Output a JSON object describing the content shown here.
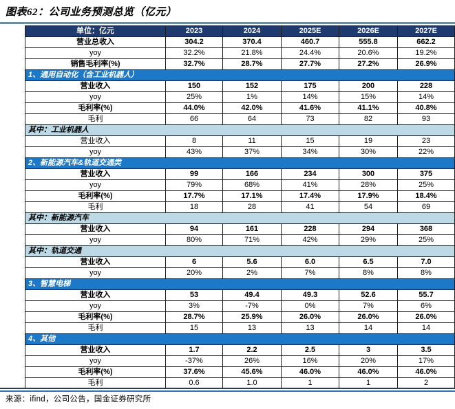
{
  "colors": {
    "header_bg": "#1f3a6e",
    "section_bg": "#1e78c8",
    "subsection_bg": "#bdd9e6",
    "top_rule": "#6d8e9d",
    "bottom_rule_dark": "#2f3c49",
    "bottom_rule_blue": "#2e74b5"
  },
  "title": "图表62：公司业务预测总览（亿元）",
  "source_note": "来源：ifind，公司公告，国金证券研究所",
  "table": {
    "columns": [
      "单位：亿元",
      "2023",
      "2024",
      "2025E",
      "2026E",
      "2027E"
    ],
    "rows": [
      {
        "type": "data",
        "label": "营业总收入",
        "bold": true,
        "label_align": "center",
        "values": [
          "304.2",
          "370.4",
          "460.7",
          "555.8",
          "662.2"
        ]
      },
      {
        "type": "data",
        "label": "yoy",
        "bold": false,
        "label_align": "center",
        "values": [
          "32.2%",
          "21.8%",
          "24.4%",
          "20.6%",
          "19.2%"
        ]
      },
      {
        "type": "data",
        "label": "销售毛利率(%)",
        "bold": true,
        "label_align": "center",
        "values": [
          "32.7%",
          "28.7%",
          "27.7%",
          "27.2%",
          "26.9%"
        ]
      },
      {
        "type": "section",
        "label": "1、通用自动化（含工业机器人）"
      },
      {
        "type": "data",
        "label": "营业收入",
        "bold": true,
        "label_align": "center",
        "values": [
          "150",
          "152",
          "175",
          "200",
          "228"
        ]
      },
      {
        "type": "data",
        "label": "yoy",
        "bold": false,
        "label_align": "right",
        "values": [
          "25%",
          "1%",
          "14%",
          "15%",
          "14%"
        ]
      },
      {
        "type": "data",
        "label": "毛利率(%)",
        "bold": true,
        "label_align": "center",
        "values": [
          "44.0%",
          "42.0%",
          "41.6%",
          "41.1%",
          "40.8%"
        ]
      },
      {
        "type": "data",
        "label": "毛利",
        "bold": false,
        "label_align": "center",
        "values": [
          "66",
          "64",
          "73",
          "82",
          "93"
        ]
      },
      {
        "type": "subsection",
        "label": "其中：工业机器人"
      },
      {
        "type": "data",
        "label": "营业收入",
        "bold": false,
        "label_align": "center",
        "values": [
          "8",
          "11",
          "15",
          "19",
          "23"
        ]
      },
      {
        "type": "data",
        "label": "yoy",
        "bold": false,
        "label_align": "right",
        "values": [
          "43%",
          "37%",
          "34%",
          "30%",
          "22%"
        ]
      },
      {
        "type": "section",
        "label": "2、新能源汽车&轨道交通类"
      },
      {
        "type": "data",
        "label": "营业收入",
        "bold": true,
        "label_align": "center",
        "values": [
          "99",
          "166",
          "234",
          "300",
          "375"
        ]
      },
      {
        "type": "data",
        "label": "yoy",
        "bold": false,
        "label_align": "right",
        "values": [
          "79%",
          "68%",
          "41%",
          "28%",
          "25%"
        ]
      },
      {
        "type": "data",
        "label": "毛利率(%)",
        "bold": true,
        "label_align": "center",
        "values": [
          "17.7%",
          "17.1%",
          "17.4%",
          "17.9%",
          "18.4%"
        ]
      },
      {
        "type": "data",
        "label": "毛利",
        "bold": false,
        "label_align": "center",
        "values": [
          "18",
          "28",
          "41",
          "54",
          "69"
        ]
      },
      {
        "type": "subsection",
        "label": "其中：新能源汽车"
      },
      {
        "type": "data",
        "label": "营业收入",
        "bold": true,
        "label_align": "center",
        "values": [
          "94",
          "161",
          "228",
          "294",
          "368"
        ]
      },
      {
        "type": "data",
        "label": "yoy",
        "bold": false,
        "label_align": "right",
        "values": [
          "80%",
          "71%",
          "42%",
          "29%",
          "25%"
        ]
      },
      {
        "type": "subsection",
        "label": "其中：轨道交通"
      },
      {
        "type": "data",
        "label": "营业收入",
        "bold": true,
        "label_align": "center",
        "values": [
          "6",
          "5.6",
          "6.0",
          "6.5",
          "7.0"
        ]
      },
      {
        "type": "data",
        "label": "yoy",
        "bold": false,
        "label_align": "right",
        "values": [
          "20%",
          "2%",
          "7%",
          "8%",
          "8%"
        ]
      },
      {
        "type": "section",
        "label": "3、智慧电梯"
      },
      {
        "type": "data",
        "label": "营业收入",
        "bold": true,
        "label_align": "center",
        "values": [
          "53",
          "49.4",
          "49.3",
          "52.6",
          "55.7"
        ]
      },
      {
        "type": "data",
        "label": "yoy",
        "bold": false,
        "label_align": "right",
        "values": [
          "3%",
          "-7%",
          "0%",
          "7%",
          "6%"
        ]
      },
      {
        "type": "data",
        "label": "毛利率(%)",
        "bold": true,
        "label_align": "center",
        "values": [
          "28.7%",
          "25.9%",
          "26.0%",
          "26.0%",
          "26.0%"
        ]
      },
      {
        "type": "data",
        "label": "毛利",
        "bold": false,
        "label_align": "center",
        "values": [
          "15",
          "13",
          "13",
          "14",
          "14"
        ]
      },
      {
        "type": "section",
        "label": "4、其他"
      },
      {
        "type": "data",
        "label": "营业收入",
        "bold": true,
        "label_align": "center",
        "values": [
          "1.7",
          "2.2",
          "2.5",
          "3",
          "3.5"
        ]
      },
      {
        "type": "data",
        "label": "yoy",
        "bold": false,
        "label_align": "right",
        "values": [
          "-37%",
          "26%",
          "16%",
          "20%",
          "17%"
        ]
      },
      {
        "type": "data",
        "label": "毛利率(%)",
        "bold": true,
        "label_align": "center",
        "values": [
          "37.6%",
          "45.6%",
          "46.0%",
          "46.0%",
          "46.0%"
        ]
      },
      {
        "type": "data",
        "label": "毛利",
        "bold": false,
        "label_align": "center",
        "values": [
          "0.6",
          "1.0",
          "1",
          "1",
          "2"
        ]
      }
    ]
  }
}
